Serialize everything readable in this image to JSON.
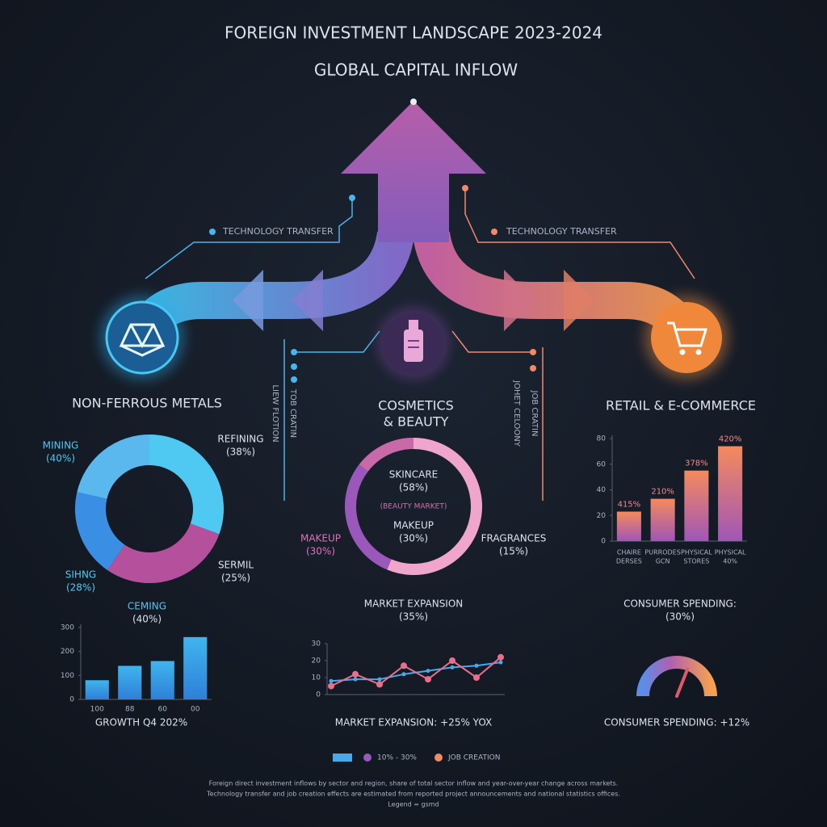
{
  "header": {
    "title": "FOREIGN INVESTMENT LANDSCAPE 2023-2024",
    "subtitle": "GLOBAL CAPITAL INFLOW"
  },
  "flows": {
    "left_label": "TECHNOLOGY TRANSFER",
    "right_label": "TECHNOLOGY TRANSFER",
    "left_vertical": [
      "LIEW FLOTION",
      "TOB CRATIN"
    ],
    "right_vertical": [
      "JOHET CELOONY",
      "JOB CRATIN"
    ]
  },
  "metals": {
    "title": "NON-FERROUS METALS",
    "donut": {
      "type": "donut",
      "segments": [
        {
          "name": "MINING",
          "value": 40,
          "value_label": "(40%)",
          "color": "#4fc8f2"
        },
        {
          "name": "REFINING",
          "value": 38,
          "value_label": "(38%)",
          "color": "#b4509c"
        },
        {
          "name": "SERMIL",
          "value": 25,
          "value_label": "(25%)",
          "color": "#3a8ee4"
        },
        {
          "name": "SIHNG",
          "value": 28,
          "value_label": "(28%)",
          "color": "#5ab8ee"
        }
      ]
    },
    "bars": {
      "type": "bar",
      "label": "CEMING",
      "label_note": "(40%)",
      "categories": [
        "100",
        "88",
        "60",
        "00"
      ],
      "values": [
        80,
        140,
        160,
        260
      ],
      "color": "#3fb5ee",
      "ylim": [
        0,
        300
      ],
      "yticks": [
        0,
        100,
        200,
        300
      ],
      "caption": "GROWTH Q4 202%"
    }
  },
  "cosmetics": {
    "title": [
      "COSMETICS",
      "& BEAUTY"
    ],
    "donut": {
      "type": "donut",
      "segments": [
        {
          "name": "SKINCARE",
          "value": 58,
          "value_label": "(58%)",
          "color": "#f0a6cc"
        },
        {
          "name": "MAKEUP",
          "value": 30,
          "value_label": "(30%)",
          "color": "#9a58ba"
        },
        {
          "name": "FRAGRANCES",
          "value": 15,
          "value_label": "(15%)",
          "color": "#c86aa8"
        }
      ],
      "center_note": "(BEAUTY MARKET)",
      "center_label": {
        "name": "MAKEUP",
        "value_label": "(30%)"
      }
    },
    "line": {
      "type": "line",
      "label": "MARKET EXPANSION",
      "label_note": "(35%)",
      "series": [
        {
          "name": "10% - 30%",
          "color": "#4aa8e8",
          "values": [
            8,
            9,
            9,
            12,
            14,
            16,
            17,
            19
          ]
        },
        {
          "name": "JOB CREATION",
          "color": "#e8708a",
          "values": [
            5,
            12,
            6,
            17,
            9,
            20,
            10,
            22
          ]
        }
      ],
      "ylim": [
        0,
        30
      ],
      "yticks": [
        0,
        10,
        20,
        30
      ],
      "caption": "MARKET EXPANSION: +25% YOX"
    }
  },
  "retail": {
    "title": "RETAIL & E-COMMERCE",
    "bars": {
      "type": "bar",
      "categories": [
        [
          "CHAIRE",
          "DERSES"
        ],
        [
          "PURRODES",
          "GCN"
        ],
        [
          "PHYSICAL",
          "STORES"
        ],
        [
          "PHYSICAL",
          "40%"
        ]
      ],
      "values": [
        23,
        33,
        55,
        74
      ],
      "bar_labels": [
        "415%",
        "210%",
        "378%",
        "420%"
      ],
      "color": "#f58a5c",
      "ylim": [
        0,
        80
      ],
      "yticks": [
        0,
        20,
        40,
        60,
        80
      ]
    },
    "gauge": {
      "type": "gauge",
      "label": "CONSUMER SPENDING:",
      "label_note": "(30%)",
      "value": 62,
      "range": [
        0,
        100
      ],
      "caption": "CONSUMER SPENDING: +12%"
    }
  },
  "legend": [
    {
      "label": "10% - 30%",
      "color": "#9a58ba"
    },
    {
      "label": "JOB CREATION",
      "color": "#f08a6a"
    }
  ],
  "footer": [
    "Foreign direct investment inflows by sector and region, share of total sector inflow and year-over-year change across markets.",
    "Technology transfer and job creation effects are estimated from reported project announcements and national statistics offices.",
    "Legend = gsmd"
  ]
}
